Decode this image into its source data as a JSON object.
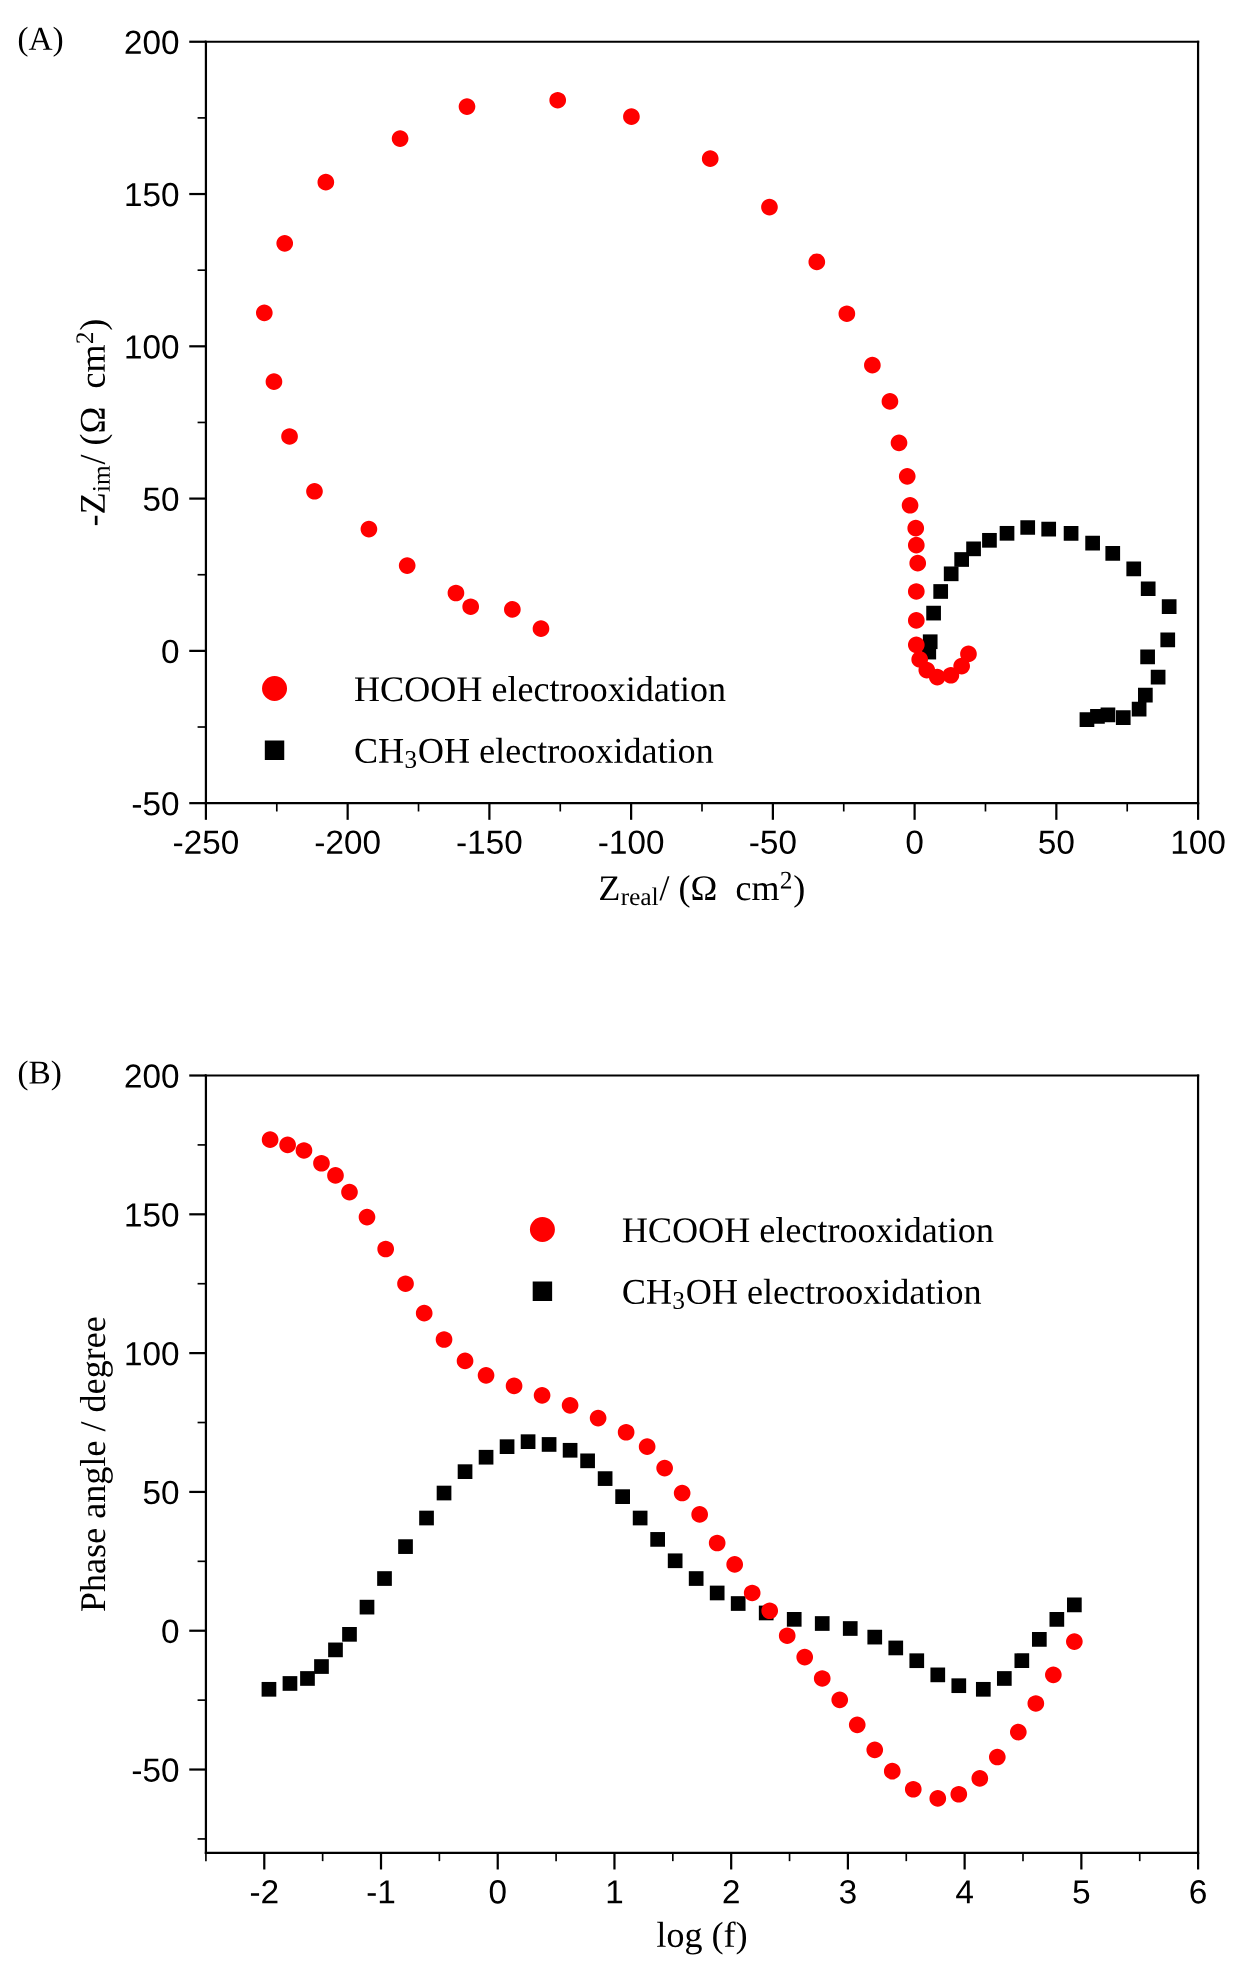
{
  "chart_data": [
    {
      "type": "scatter",
      "title": "(A)",
      "xlabel": "Z$_{real}$/ (Ω  cm$^{2}$)",
      "ylabel": "-Z$_{im}$/ (Ω  cm$^{2}$)",
      "xlim": [
        -250,
        100
      ],
      "ylim": [
        -50,
        200
      ],
      "xticks": [
        -250,
        {
          "value": -225,
          "label": null
        },
        -200,
        {
          "value": -175,
          "label": null
        },
        -150,
        {
          "value": -125,
          "label": null
        },
        -100,
        {
          "value": -75,
          "label": null
        },
        -50,
        {
          "value": -25,
          "label": null
        },
        0,
        {
          "value": 25,
          "label": null
        },
        50,
        {
          "value": 75,
          "label": null
        },
        100
      ],
      "yticks": [
        -50,
        {
          "value": -25,
          "label": null
        },
        0,
        {
          "value": 25,
          "label": null
        },
        50,
        {
          "value": 75,
          "label": null
        },
        100,
        {
          "value": 125,
          "label": null
        },
        150,
        {
          "value": 175,
          "label": null
        },
        200
      ],
      "grid": false,
      "legend": "bottom left",
      "series": [
        {
          "name": "HCOOH electrooxidation",
          "color": "#ff0000",
          "marker": "circle",
          "x": [
            19,
            16.6,
            12.8,
            8,
            4.3,
            1.8,
            0.6,
            0.6,
            0.6,
            1.1,
            0.6,
            0.4,
            -1.6,
            -2.6,
            -5.5,
            -8.7,
            -14.9,
            -23.9,
            -34.5,
            -51.2,
            -72.1,
            -99.9,
            -125.9,
            -157.9,
            -181.5,
            -207.7,
            -222.2,
            -229.4,
            -226,
            -220.5,
            -211.7,
            -192.5,
            -179,
            -161.8,
            -156.6,
            -141.9,
            -131.8
          ],
          "values": [
            -1,
            -5,
            -8,
            -8.6,
            -6.3,
            -2.8,
            2,
            10,
            19.5,
            28.8,
            34.7,
            40.3,
            47.8,
            57.3,
            68.3,
            81.9,
            93.8,
            110.7,
            127.7,
            145.7,
            161.6,
            175.4,
            180.8,
            178.7,
            168.2,
            153.9,
            133.8,
            111,
            88.4,
            70.4,
            52.4,
            40,
            28,
            19,
            14.5,
            13.6,
            7.3
          ]
        },
        {
          "name": "CH$_{3}$OH electrooxidation",
          "color": "#000000",
          "marker": "square",
          "x": [
            5,
            5.5,
            6.7,
            9.2,
            12.9,
            16.6,
            20.8,
            26.4,
            32.6,
            39.9,
            47.3,
            55.2,
            62.8,
            69.9,
            77.3,
            82.4,
            89.8,
            89.3,
            82.2,
            85.9,
            81.4,
            79.2,
            73.6,
            68.2,
            64.5,
            60.8
          ],
          "values": [
            -0.4,
            3,
            12.4,
            19.5,
            25.3,
            30,
            33.5,
            36.3,
            38.6,
            40.5,
            40,
            38.6,
            35.4,
            32,
            26.9,
            20.4,
            14.5,
            3.6,
            -2,
            -8.6,
            -14.5,
            -19.1,
            -21.9,
            -21,
            -21.5,
            -22.6
          ]
        }
      ]
    },
    {
      "type": "scatter",
      "title": "(B)",
      "xlabel": "log (f)",
      "ylabel": "Phase angle / degree",
      "xlim": [
        -2.5,
        6
      ],
      "ylim": [
        -80,
        200
      ],
      "xticks": [
        {
          "value": -2.5,
          "label": null
        },
        -2,
        {
          "value": -1.5,
          "label": null
        },
        -1,
        {
          "value": -0.5,
          "label": null
        },
        0,
        {
          "value": 0.5,
          "label": null
        },
        1,
        {
          "value": 1.5,
          "label": null
        },
        2,
        {
          "value": 2.5,
          "label": null
        },
        3,
        {
          "value": 3.5,
          "label": null
        },
        4,
        {
          "value": 4.5,
          "label": null
        },
        5,
        {
          "value": 5.5,
          "label": null
        },
        6
      ],
      "yticks": [
        {
          "value": -75,
          "label": null
        },
        -50,
        {
          "value": -25,
          "label": null
        },
        0,
        {
          "value": 25,
          "label": null
        },
        50,
        {
          "value": 75,
          "label": null
        },
        100,
        {
          "value": 125,
          "label": null
        },
        150,
        {
          "value": 175,
          "label": null
        },
        200
      ],
      "grid": false,
      "legend": "top",
      "series": [
        {
          "name": "HCOOH electrooxidation",
          "color": "#ff0000",
          "marker": "circle",
          "x": [
            -1.95,
            -1.8,
            -1.66,
            -1.51,
            -1.39,
            -1.27,
            -1.12,
            -0.96,
            -0.79,
            -0.63,
            -0.46,
            -0.28,
            -0.1,
            0.14,
            0.38,
            0.62,
            0.86,
            1.1,
            1.28,
            1.43,
            1.58,
            1.73,
            1.88,
            2.03,
            2.18,
            2.33,
            2.48,
            2.63,
            2.78,
            2.93,
            3.08,
            3.23,
            3.38,
            3.56,
            3.77,
            3.95,
            4.13,
            4.28,
            4.46,
            4.61,
            4.76,
            4.94
          ],
          "values": [
            176.9,
            175,
            173,
            168.4,
            164,
            158,
            149,
            137.5,
            125,
            114.4,
            104.9,
            97.2,
            92,
            88.2,
            84.8,
            81.2,
            76.6,
            71.5,
            66.3,
            58.6,
            49.6,
            41.9,
            31.6,
            23.9,
            13.6,
            7.2,
            -1.8,
            -9.5,
            -17.2,
            -24.9,
            -33.9,
            -42.9,
            -50.6,
            -57.1,
            -60.4,
            -58.9,
            -53.2,
            -45.5,
            -36.5,
            -26.2,
            -15.9,
            -3.9
          ]
        },
        {
          "name": "CH$_{3}$OH electrooxidation",
          "color": "#000000",
          "marker": "square",
          "x": [
            -1.96,
            -1.78,
            -1.63,
            -1.51,
            -1.39,
            -1.27,
            -1.12,
            -0.97,
            -0.79,
            -0.61,
            -0.46,
            -0.28,
            -0.1,
            0.08,
            0.26,
            0.44,
            0.62,
            0.77,
            0.92,
            1.07,
            1.22,
            1.37,
            1.52,
            1.7,
            1.88,
            2.06,
            2.3,
            2.54,
            2.78,
            3.02,
            3.23,
            3.41,
            3.59,
            3.77,
            3.95,
            4.16,
            4.34,
            4.49,
            4.64,
            4.79,
            4.94
          ],
          "values": [
            -21.1,
            -19,
            -17.2,
            -12.9,
            -6.9,
            -1.3,
            8.5,
            18.8,
            30.3,
            40.6,
            49.6,
            57.3,
            62.5,
            66.3,
            68.1,
            67.1,
            65,
            61.2,
            54.8,
            48.3,
            40.6,
            32.9,
            25.2,
            18.8,
            13.6,
            9.8,
            6.4,
            4.1,
            2.6,
            0.8,
            -2.3,
            -6.2,
            -10.8,
            -15.9,
            -19.8,
            -21.1,
            -17.2,
            -10.8,
            -3.1,
            4.1,
            9.3
          ]
        }
      ]
    }
  ]
}
